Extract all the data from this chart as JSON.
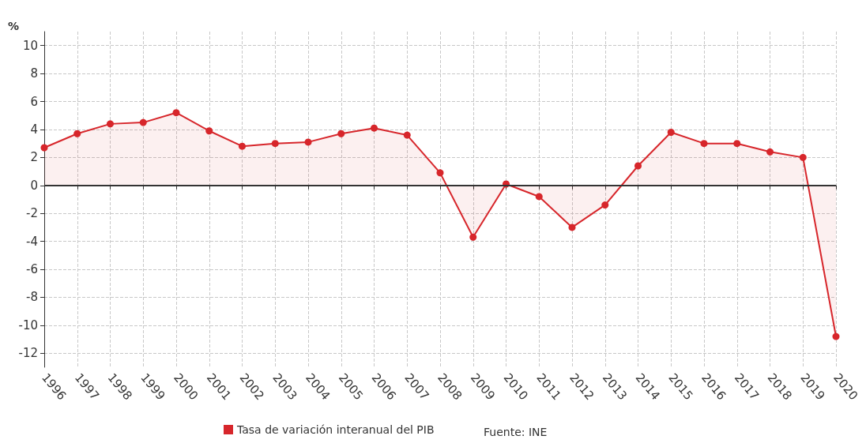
{
  "chart_data": {
    "type": "area",
    "ylabel": "%",
    "categories": [
      "1996",
      "1997",
      "1998",
      "1999",
      "2000",
      "2001",
      "2002",
      "2003",
      "2004",
      "2005",
      "2006",
      "2007",
      "2008",
      "2009",
      "2010",
      "2011",
      "2012",
      "2013",
      "2014",
      "2015",
      "2016",
      "2017",
      "2018",
      "2019",
      "2020"
    ],
    "series": [
      {
        "name": "Tasa de variación interanual del PIB",
        "color": "#d7262b",
        "values": [
          2.7,
          3.7,
          4.4,
          4.5,
          5.2,
          3.9,
          2.8,
          3.0,
          3.1,
          3.7,
          4.1,
          3.6,
          0.9,
          -3.7,
          0.1,
          -0.8,
          -3.0,
          -1.4,
          1.4,
          3.8,
          3.0,
          3.0,
          2.4,
          2.0,
          -10.8
        ]
      }
    ],
    "ylim": [
      -13,
      11
    ],
    "yticks": [
      -12,
      -10,
      -8,
      -6,
      -4,
      -2,
      0,
      2,
      4,
      6,
      8,
      10
    ],
    "ref_lines": [
      {
        "axis": "y",
        "value": 0,
        "color": "#333333"
      }
    ],
    "grid": true,
    "legend": "bottom",
    "marker": "circle",
    "line_style": "solid",
    "annotations": [
      "Fuente: INE"
    ]
  }
}
